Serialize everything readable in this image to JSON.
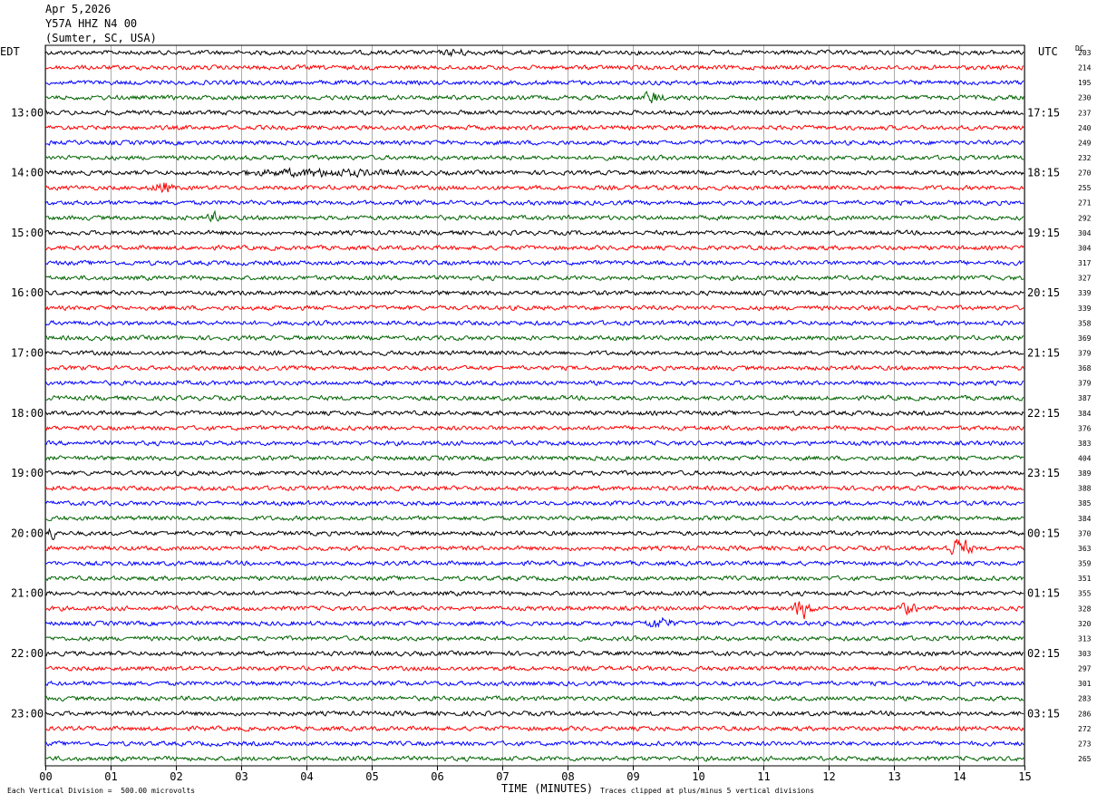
{
  "header": {
    "date": "Apr 5,2026",
    "station": "Y57A HHZ N4 00",
    "location": "(Sumter, SC, USA)"
  },
  "left_label": "EDT",
  "right_label": "UTC",
  "dc_label": "DC",
  "footer": {
    "left_note": "Each Vertical Division =  500.00 microvolts",
    "x_title": "TIME (MINUTES)",
    "right_note": "Traces clipped at plus/minus 5 vertical divisions"
  },
  "colors": {
    "trace_cycle": [
      "#000000",
      "#ff0000",
      "#0000ff",
      "#006400"
    ],
    "grid": "#000000",
    "background": "#ffffff"
  },
  "chart_data": {
    "type": "line",
    "title": "Apr 5,2026",
    "xlabel": "TIME (MINUTES)",
    "x_ticks": [
      "00",
      "01",
      "02",
      "03",
      "04",
      "05",
      "06",
      "07",
      "08",
      "09",
      "10",
      "11",
      "12",
      "13",
      "14",
      "15"
    ],
    "xlim": [
      0,
      15
    ],
    "rows_count": 48,
    "minutes_per_row": 15,
    "edt_labels": [
      {
        "row": 4,
        "label": "13:00"
      },
      {
        "row": 8,
        "label": "14:00"
      },
      {
        "row": 12,
        "label": "15:00"
      },
      {
        "row": 16,
        "label": "16:00"
      },
      {
        "row": 20,
        "label": "17:00"
      },
      {
        "row": 24,
        "label": "18:00"
      },
      {
        "row": 28,
        "label": "19:00"
      },
      {
        "row": 32,
        "label": "20:00"
      },
      {
        "row": 36,
        "label": "21:00"
      },
      {
        "row": 40,
        "label": "22:00"
      },
      {
        "row": 44,
        "label": "23:00"
      }
    ],
    "utc_labels": [
      {
        "row": 4,
        "label": "17:15"
      },
      {
        "row": 8,
        "label": "18:15"
      },
      {
        "row": 12,
        "label": "19:15"
      },
      {
        "row": 16,
        "label": "20:15"
      },
      {
        "row": 20,
        "label": "21:15"
      },
      {
        "row": 24,
        "label": "22:15"
      },
      {
        "row": 28,
        "label": "23:15"
      },
      {
        "row": 32,
        "label": "00:15"
      },
      {
        "row": 36,
        "label": "01:15"
      },
      {
        "row": 40,
        "label": "02:15"
      },
      {
        "row": 44,
        "label": "03:15"
      }
    ],
    "dc_values": [
      203,
      214,
      195,
      230,
      237,
      240,
      249,
      232,
      270,
      255,
      271,
      292,
      304,
      304,
      317,
      327,
      339,
      339,
      358,
      369,
      379,
      368,
      379,
      387,
      384,
      376,
      383,
      404,
      389,
      388,
      385,
      384,
      370,
      363,
      359,
      351,
      355,
      328,
      320,
      313,
      303,
      297,
      301,
      283,
      286,
      272,
      273,
      265
    ],
    "events": [
      {
        "row": 0,
        "minute": 6.3,
        "amp": 2.0,
        "width": 0.25
      },
      {
        "row": 3,
        "minute": 9.3,
        "amp": 4.0,
        "width": 0.2
      },
      {
        "row": 8,
        "minute": 4.2,
        "amp": 2.0,
        "width": 1.6
      },
      {
        "row": 9,
        "minute": 1.8,
        "amp": 4.0,
        "width": 0.2
      },
      {
        "row": 11,
        "minute": 2.6,
        "amp": 3.0,
        "width": 0.15
      },
      {
        "row": 32,
        "minute": 0.1,
        "amp": 4.0,
        "width": 0.1
      },
      {
        "row": 33,
        "minute": 14.0,
        "amp": 7.0,
        "width": 0.25
      },
      {
        "row": 37,
        "minute": 11.6,
        "amp": 7.0,
        "width": 0.2
      },
      {
        "row": 37,
        "minute": 13.2,
        "amp": 3.5,
        "width": 0.2
      },
      {
        "row": 38,
        "minute": 9.4,
        "amp": 3.5,
        "width": 0.3
      }
    ]
  }
}
